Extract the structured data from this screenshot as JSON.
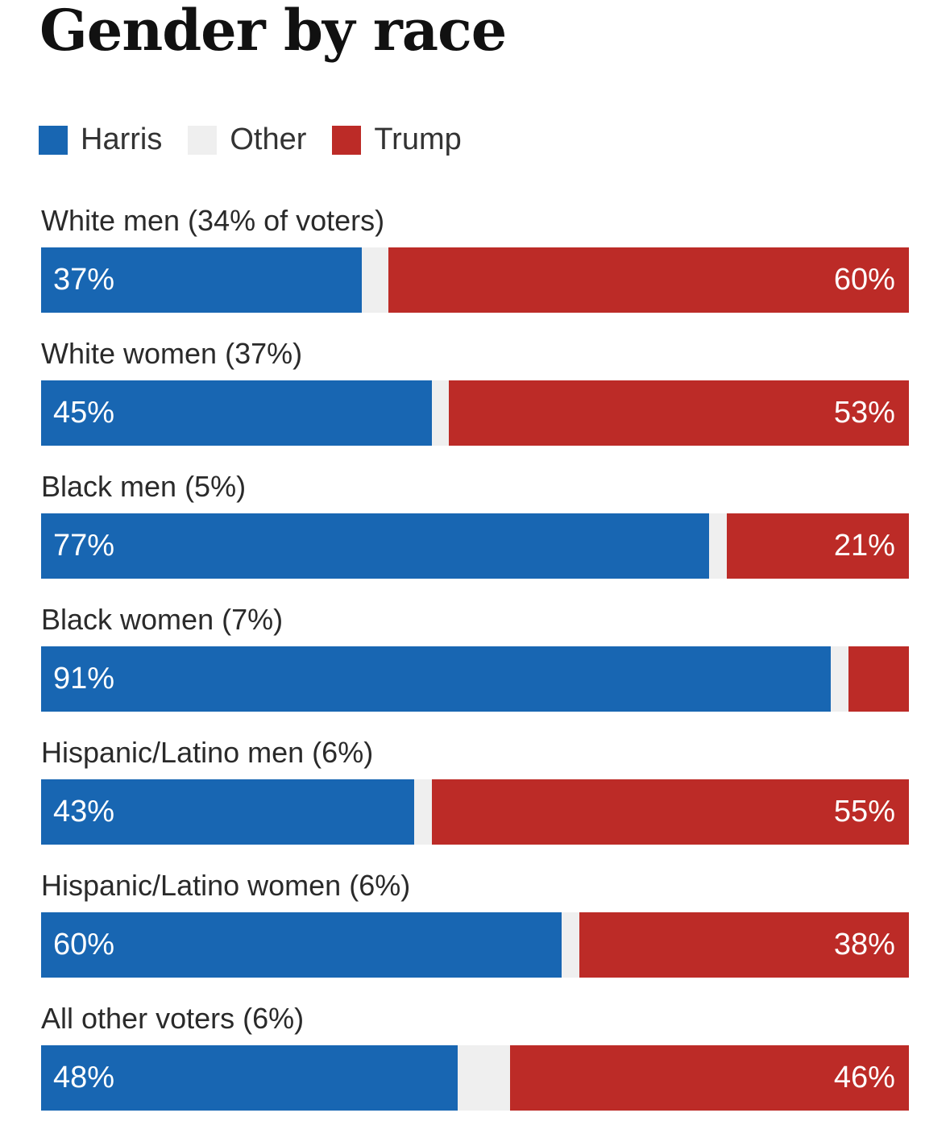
{
  "chart_data": {
    "type": "bar",
    "orientation": "horizontal-stacked",
    "title": "Gender by race",
    "legend": [
      {
        "name": "Harris",
        "color": "#1866b2"
      },
      {
        "name": "Other",
        "color": "#efefef"
      },
      {
        "name": "Trump",
        "color": "#bc2b27"
      }
    ],
    "categories": [
      "White men (34% of voters)",
      "White women (37%)",
      "Black men (5%)",
      "Black women (7%)",
      "Hispanic/Latino men (6%)",
      "Hispanic/Latino women (6%)",
      "All other voters (6%)"
    ],
    "series": [
      {
        "name": "Harris",
        "values": [
          37,
          45,
          77,
          91,
          43,
          60,
          48
        ],
        "labels": [
          "37%",
          "45%",
          "77%",
          "91%",
          "43%",
          "60%",
          "48%"
        ]
      },
      {
        "name": "Other",
        "values": [
          3,
          2,
          2,
          2,
          2,
          2,
          6
        ],
        "labels": [
          null,
          null,
          null,
          null,
          null,
          null,
          null
        ]
      },
      {
        "name": "Trump",
        "values": [
          60,
          53,
          21,
          7,
          55,
          38,
          46
        ],
        "labels": [
          "60%",
          "53%",
          "21%",
          null,
          "55%",
          "38%",
          "46%"
        ]
      }
    ],
    "xlim": [
      0,
      100
    ],
    "grid": false,
    "legend_placement": "top-left"
  }
}
